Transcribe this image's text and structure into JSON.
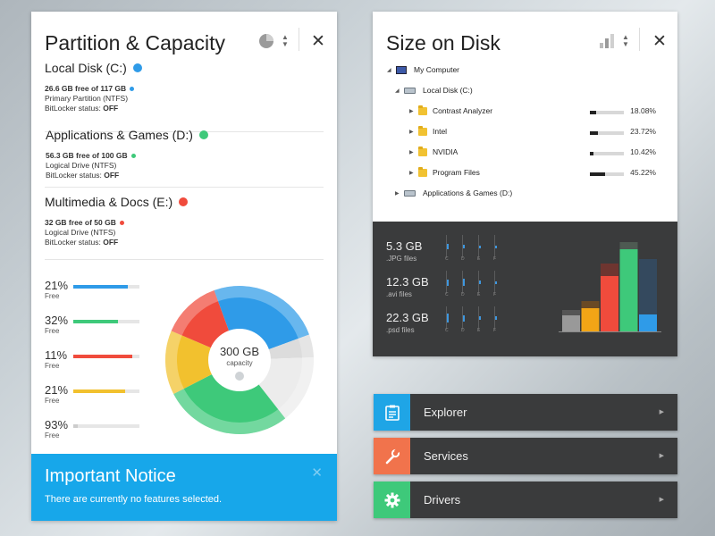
{
  "left_panel": {
    "title": "Partition & Capacity",
    "view_icon": "pie-chart-icon",
    "disks": [
      {
        "name": "Local Disk (C:)",
        "color": "#2f9be8",
        "free": "26.6 GB free of 117 GB",
        "type": "Primary Partition (NTFS)",
        "bitlocker_label": "BitLocker status: ",
        "bitlocker": "OFF"
      },
      {
        "name": "Applications & Games (D:)",
        "color": "#3ec97a",
        "free": "56.3 GB free of 100 GB",
        "type": "Logical Drive (NTFS)",
        "bitlocker_label": "BitLocker status: ",
        "bitlocker": "OFF"
      },
      {
        "name": "Multimedia & Docs (E:)",
        "color": "#f04b3c",
        "free": "32 GB free of 50 GB",
        "type": "Logical Drive (NTFS)",
        "bitlocker_label": "BitLocker status: ",
        "bitlocker": "OFF"
      }
    ],
    "usage": [
      {
        "pct": "21%",
        "label": "Free",
        "fill": 0.82,
        "color": "#2f9be8"
      },
      {
        "pct": "32%",
        "label": "Free",
        "fill": 0.68,
        "color": "#3ec97a"
      },
      {
        "pct": "11%",
        "label": "Free",
        "fill": 0.89,
        "color": "#f04b3c"
      },
      {
        "pct": "21%",
        "label": "Free",
        "fill": 0.79,
        "color": "#f2c12e"
      },
      {
        "pct": "93%",
        "label": "Free",
        "fill": 0.07,
        "color": "#cccccc"
      }
    ],
    "donut": {
      "center_value": "300 GB",
      "center_label": "capacity",
      "segments": [
        {
          "name": "blue",
          "color": "#2f9be8",
          "value": 0.25
        },
        {
          "name": "light",
          "color": "#dcdcdc",
          "value": 0.05
        },
        {
          "name": "grey",
          "color": "#ececec",
          "value": 0.15
        },
        {
          "name": "green",
          "color": "#3ec97a",
          "value": 0.28
        },
        {
          "name": "yellow",
          "color": "#f2c12e",
          "value": 0.14
        },
        {
          "name": "red",
          "color": "#f04b3c",
          "value": 0.13
        }
      ]
    },
    "notice": {
      "title": "Important Notice",
      "text": "There are currently no features selected."
    }
  },
  "right_panel": {
    "title": "Size on Disk",
    "view_icon": "bar-chart-icon",
    "tree": {
      "root": "My Computer",
      "drive_c": "Local Disk (C:)",
      "folders": [
        {
          "name": "Contrast Analyzer",
          "pct": "18.08%",
          "value": 0.18
        },
        {
          "name": "Intel",
          "pct": "23.72%",
          "value": 0.24
        },
        {
          "name": "NVIDIA",
          "pct": "10.42%",
          "value": 0.1
        },
        {
          "name": "Program Files",
          "pct": "45.22%",
          "value": 0.45
        }
      ],
      "drive_d": "Applications & Games (D:)"
    },
    "filetypes": [
      {
        "size": "5.3 GB",
        "label": ".JPG files",
        "levels": [
          0.4,
          0.3,
          0.2,
          0.1
        ]
      },
      {
        "size": "12.3 GB",
        "label": ".avi files",
        "levels": [
          0.5,
          0.6,
          0.3,
          0.2
        ]
      },
      {
        "size": "22.3 GB",
        "label": ".psd files",
        "levels": [
          0.7,
          0.5,
          0.3,
          0.3
        ]
      }
    ],
    "drive_letters": [
      "C",
      "D",
      "E",
      "F"
    ],
    "bar_chart": {
      "bars": [
        {
          "color": "#999999",
          "top_color": "#555555",
          "value": 0.18,
          "cap": 0.06
        },
        {
          "color": "#f2a516",
          "top_color": "#6a4a25",
          "value": 0.26,
          "cap": 0.08
        },
        {
          "color": "#f04b3c",
          "top_color": "#6e3530",
          "value": 0.62,
          "cap": 0.14
        },
        {
          "color": "#3ec97a",
          "top_color": "#4e5a52",
          "value": 0.92,
          "cap": 0.08
        },
        {
          "color": "#2f9be8",
          "top_color": "#34495e",
          "value": 0.19,
          "cap": 0.62
        }
      ]
    }
  },
  "nav": [
    {
      "label": "Explorer",
      "icon": "clipboard-icon",
      "color": "#1fa5e6"
    },
    {
      "label": "Services",
      "icon": "wrench-icon",
      "color": "#f1734c"
    },
    {
      "label": "Drivers",
      "icon": "gear-icon",
      "color": "#3ec97a"
    }
  ]
}
